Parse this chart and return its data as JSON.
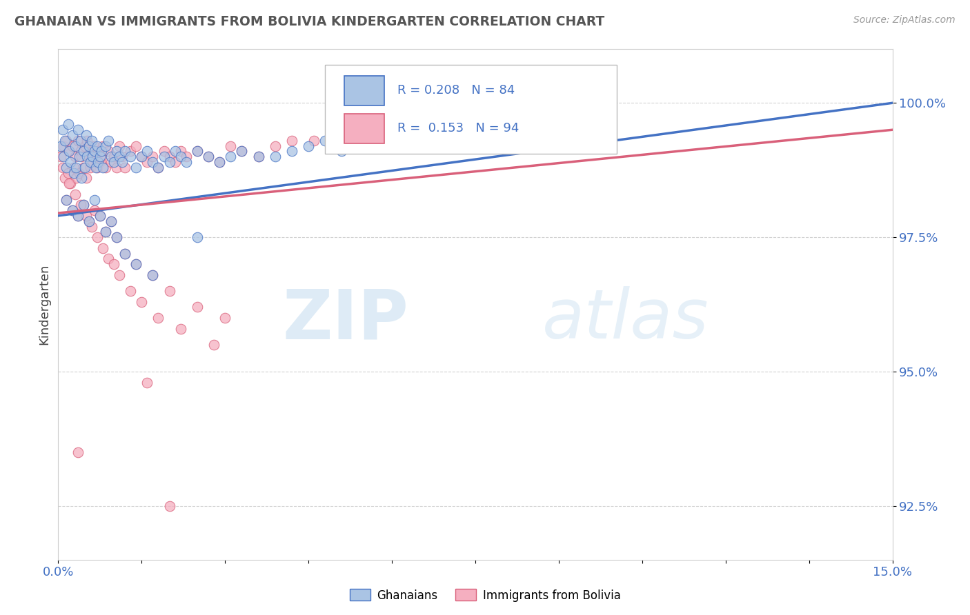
{
  "title": "GHANAIAN VS IMMIGRANTS FROM BOLIVIA KINDERGARTEN CORRELATION CHART",
  "source_text": "Source: ZipAtlas.com",
  "xlabel": "",
  "ylabel": "Kindergarten",
  "xlim": [
    0.0,
    15.0
  ],
  "ylim": [
    91.5,
    101.0
  ],
  "xticks": [
    0.0,
    1.5,
    3.0,
    4.5,
    6.0,
    7.5,
    9.0,
    10.5,
    12.0,
    13.5,
    15.0
  ],
  "xticklabels": [
    "0.0%",
    "",
    "",
    "",
    "",
    "",
    "",
    "",
    "",
    "",
    "15.0%"
  ],
  "yticks": [
    92.5,
    95.0,
    97.5,
    100.0
  ],
  "yticklabels": [
    "92.5%",
    "95.0%",
    "97.5%",
    "100.0%"
  ],
  "ghanaian_color": "#aac4e4",
  "bolivia_color": "#f5afc0",
  "ghanaian_line_color": "#4472c4",
  "bolivia_line_color": "#d9607a",
  "R_ghanaian": 0.208,
  "N_ghanaian": 84,
  "R_bolivia": 0.153,
  "N_bolivia": 94,
  "watermark_zip": "ZIP",
  "watermark_atlas": "atlas",
  "legend_label_1": "Ghanaians",
  "legend_label_2": "Immigrants from Bolivia",
  "ghanaian_x": [
    0.05,
    0.08,
    0.1,
    0.12,
    0.15,
    0.18,
    0.2,
    0.22,
    0.25,
    0.28,
    0.3,
    0.32,
    0.35,
    0.38,
    0.4,
    0.42,
    0.45,
    0.48,
    0.5,
    0.52,
    0.55,
    0.58,
    0.6,
    0.62,
    0.65,
    0.68,
    0.7,
    0.72,
    0.75,
    0.78,
    0.8,
    0.85,
    0.9,
    0.95,
    1.0,
    1.05,
    1.1,
    1.15,
    1.2,
    1.3,
    1.4,
    1.5,
    1.6,
    1.7,
    1.8,
    1.9,
    2.0,
    2.1,
    2.2,
    2.3,
    2.5,
    2.7,
    2.9,
    3.1,
    3.3,
    3.6,
    3.9,
    4.2,
    4.5,
    4.8,
    5.1,
    5.4,
    5.7,
    6.0,
    6.5,
    7.0,
    7.5,
    8.0,
    8.5,
    9.0,
    0.15,
    0.25,
    0.35,
    0.45,
    0.55,
    0.65,
    0.75,
    0.85,
    0.95,
    1.05,
    1.2,
    1.4,
    1.7,
    2.5
  ],
  "ghanaian_y": [
    99.2,
    99.5,
    99.0,
    99.3,
    98.8,
    99.6,
    99.1,
    98.9,
    99.4,
    98.7,
    99.2,
    98.8,
    99.5,
    99.0,
    99.3,
    98.6,
    99.1,
    98.8,
    99.4,
    99.0,
    99.2,
    98.9,
    99.3,
    99.0,
    99.1,
    98.8,
    99.2,
    98.9,
    99.0,
    99.1,
    98.8,
    99.2,
    99.3,
    99.0,
    98.9,
    99.1,
    99.0,
    98.9,
    99.1,
    99.0,
    98.8,
    99.0,
    99.1,
    98.9,
    98.8,
    99.0,
    98.9,
    99.1,
    99.0,
    98.9,
    99.1,
    99.0,
    98.9,
    99.0,
    99.1,
    99.0,
    99.0,
    99.1,
    99.2,
    99.3,
    99.1,
    99.2,
    99.3,
    99.4,
    99.3,
    99.5,
    99.6,
    99.7,
    99.8,
    99.9,
    98.2,
    98.0,
    97.9,
    98.1,
    97.8,
    98.2,
    97.9,
    97.6,
    97.8,
    97.5,
    97.2,
    97.0,
    96.8,
    97.5
  ],
  "bolivia_x": [
    0.05,
    0.08,
    0.1,
    0.12,
    0.15,
    0.18,
    0.2,
    0.22,
    0.25,
    0.28,
    0.3,
    0.32,
    0.35,
    0.38,
    0.4,
    0.42,
    0.45,
    0.48,
    0.5,
    0.52,
    0.55,
    0.58,
    0.6,
    0.62,
    0.65,
    0.68,
    0.7,
    0.72,
    0.75,
    0.78,
    0.8,
    0.85,
    0.9,
    0.95,
    1.0,
    1.05,
    1.1,
    1.15,
    1.2,
    1.3,
    1.4,
    1.5,
    1.6,
    1.7,
    1.8,
    1.9,
    2.0,
    2.1,
    2.2,
    2.3,
    2.5,
    2.7,
    2.9,
    3.1,
    3.3,
    3.6,
    3.9,
    4.2,
    4.6,
    5.0,
    0.15,
    0.25,
    0.35,
    0.45,
    0.55,
    0.65,
    0.75,
    0.85,
    0.95,
    1.05,
    1.2,
    1.4,
    1.7,
    2.0,
    2.5,
    3.0,
    0.2,
    0.3,
    0.4,
    0.5,
    0.6,
    0.7,
    0.8,
    0.9,
    1.0,
    1.1,
    1.3,
    1.5,
    1.8,
    2.2,
    2.8,
    1.6,
    0.35,
    2.0
  ],
  "bolivia_y": [
    99.0,
    98.8,
    99.2,
    98.6,
    99.3,
    98.7,
    99.1,
    98.5,
    99.2,
    98.8,
    99.0,
    98.6,
    99.3,
    98.7,
    99.1,
    99.0,
    98.8,
    99.2,
    98.6,
    99.3,
    99.0,
    98.8,
    99.1,
    98.9,
    99.2,
    99.0,
    98.8,
    99.1,
    98.9,
    99.0,
    99.2,
    98.8,
    99.1,
    98.9,
    99.0,
    98.8,
    99.2,
    99.0,
    98.8,
    99.1,
    99.2,
    99.0,
    98.9,
    99.0,
    98.8,
    99.1,
    99.0,
    98.9,
    99.1,
    99.0,
    99.1,
    99.0,
    98.9,
    99.2,
    99.1,
    99.0,
    99.2,
    99.3,
    99.3,
    99.4,
    98.2,
    98.0,
    97.9,
    98.1,
    97.8,
    98.0,
    97.9,
    97.6,
    97.8,
    97.5,
    97.2,
    97.0,
    96.8,
    96.5,
    96.2,
    96.0,
    98.5,
    98.3,
    98.1,
    97.9,
    97.7,
    97.5,
    97.3,
    97.1,
    97.0,
    96.8,
    96.5,
    96.3,
    96.0,
    95.8,
    95.5,
    94.8,
    93.5,
    92.5
  ]
}
